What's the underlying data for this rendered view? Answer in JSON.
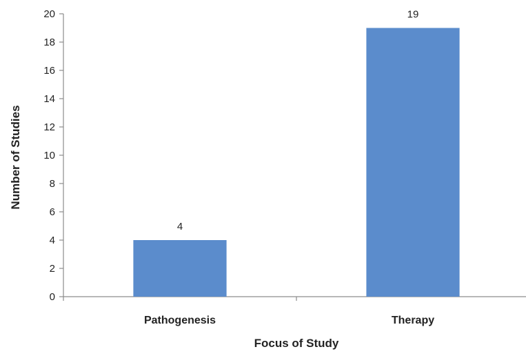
{
  "chart_data": {
    "type": "bar",
    "title": "",
    "xlabel": "Focus of Study",
    "ylabel": "Number of Studies",
    "categories": [
      "Pathogenesis",
      "Therapy"
    ],
    "values": [
      4,
      19
    ],
    "data_labels": [
      "4",
      "19"
    ],
    "ylim": [
      0,
      20
    ],
    "yticks": [
      0,
      2,
      4,
      6,
      8,
      10,
      12,
      14,
      16,
      18,
      20
    ],
    "grid": false,
    "legend": "none",
    "bar_color": "#5b8ccc"
  }
}
